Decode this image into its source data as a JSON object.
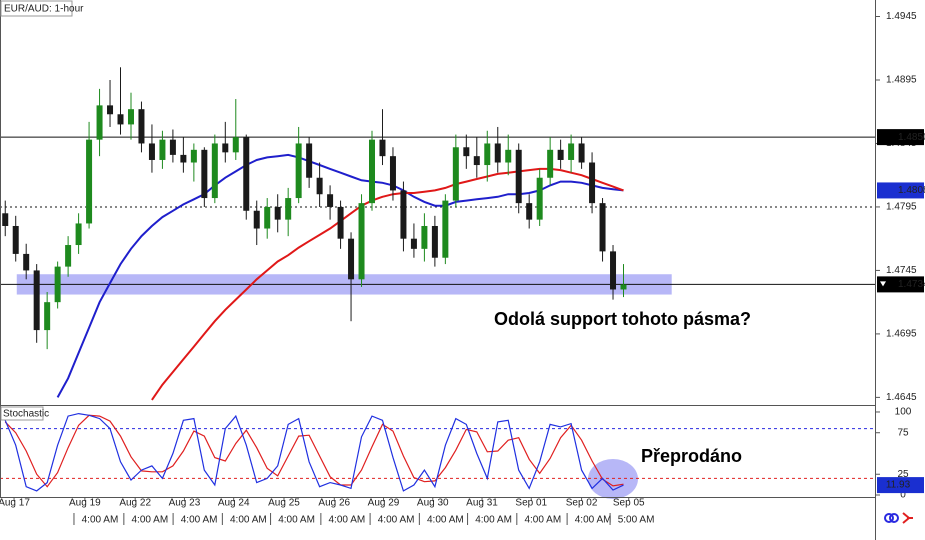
{
  "chart_data": {
    "type": "candlestick",
    "title": "EUR/AUD: 1-hour",
    "annotation": "Odolá support tohoto pásma?",
    "xlim": [
      -0.5,
      83
    ],
    "ylim": [
      1.4639,
      1.4958
    ],
    "yticks": [
      1.4945,
      1.4895,
      1.4845,
      1.4795,
      1.4745,
      1.4695,
      1.4645
    ],
    "up_color": "#1e8a1e",
    "down_color": "#1a1a1a",
    "ohlc": [
      [
        1.479,
        1.48,
        1.4772,
        1.478
      ],
      [
        1.478,
        1.4788,
        1.4752,
        1.4758
      ],
      [
        1.4758,
        1.4766,
        1.4738,
        1.4745
      ],
      [
        1.4745,
        1.475,
        1.4688,
        1.4698
      ],
      [
        1.4698,
        1.4728,
        1.4683,
        1.472
      ],
      [
        1.472,
        1.4752,
        1.4715,
        1.4748
      ],
      [
        1.4748,
        1.4772,
        1.474,
        1.4765
      ],
      [
        1.4765,
        1.479,
        1.4758,
        1.4782
      ],
      [
        1.4782,
        1.4862,
        1.4778,
        1.4848
      ],
      [
        1.4848,
        1.4888,
        1.4835,
        1.4875
      ],
      [
        1.4875,
        1.4895,
        1.4858,
        1.4868
      ],
      [
        1.4868,
        1.4905,
        1.4852,
        1.486
      ],
      [
        1.486,
        1.4885,
        1.4848,
        1.4872
      ],
      [
        1.4872,
        1.4878,
        1.4838,
        1.4845
      ],
      [
        1.4845,
        1.486,
        1.4822,
        1.4832
      ],
      [
        1.4832,
        1.4855,
        1.4825,
        1.4848
      ],
      [
        1.4848,
        1.4856,
        1.483,
        1.4836
      ],
      [
        1.4836,
        1.485,
        1.4822,
        1.483
      ],
      [
        1.483,
        1.4845,
        1.4815,
        1.484
      ],
      [
        1.484,
        1.4842,
        1.4795,
        1.4802
      ],
      [
        1.4802,
        1.4852,
        1.4798,
        1.4845
      ],
      [
        1.4845,
        1.4862,
        1.483,
        1.4838
      ],
      [
        1.4838,
        1.488,
        1.4832,
        1.485
      ],
      [
        1.485,
        1.4852,
        1.4785,
        1.4792
      ],
      [
        1.4792,
        1.48,
        1.4765,
        1.4778
      ],
      [
        1.4778,
        1.4802,
        1.477,
        1.4795
      ],
      [
        1.4795,
        1.4805,
        1.4775,
        1.4785
      ],
      [
        1.4785,
        1.481,
        1.4772,
        1.4802
      ],
      [
        1.4802,
        1.4858,
        1.4798,
        1.4845
      ],
      [
        1.4845,
        1.485,
        1.481,
        1.4818
      ],
      [
        1.4818,
        1.483,
        1.4795,
        1.4805
      ],
      [
        1.4805,
        1.4812,
        1.4785,
        1.4795
      ],
      [
        1.4795,
        1.48,
        1.4762,
        1.477
      ],
      [
        1.477,
        1.4775,
        1.4705,
        1.4738
      ],
      [
        1.4738,
        1.4805,
        1.4732,
        1.4798
      ],
      [
        1.4798,
        1.4855,
        1.4792,
        1.4848
      ],
      [
        1.4848,
        1.4872,
        1.4828,
        1.4835
      ],
      [
        1.4835,
        1.4842,
        1.48,
        1.4808
      ],
      [
        1.4808,
        1.4815,
        1.476,
        1.477
      ],
      [
        1.477,
        1.4782,
        1.4755,
        1.4762
      ],
      [
        1.4762,
        1.479,
        1.4752,
        1.478
      ],
      [
        1.478,
        1.4788,
        1.4748,
        1.4755
      ],
      [
        1.4755,
        1.4805,
        1.475,
        1.48
      ],
      [
        1.48,
        1.4852,
        1.4795,
        1.4842
      ],
      [
        1.4842,
        1.4852,
        1.4825,
        1.4835
      ],
      [
        1.4835,
        1.485,
        1.4818,
        1.4828
      ],
      [
        1.4828,
        1.4855,
        1.4815,
        1.4845
      ],
      [
        1.4845,
        1.4858,
        1.4822,
        1.483
      ],
      [
        1.483,
        1.4852,
        1.482,
        1.484
      ],
      [
        1.484,
        1.4845,
        1.479,
        1.4798
      ],
      [
        1.4798,
        1.4805,
        1.4778,
        1.4785
      ],
      [
        1.4785,
        1.4825,
        1.478,
        1.4818
      ],
      [
        1.4818,
        1.485,
        1.4812,
        1.484
      ],
      [
        1.484,
        1.4848,
        1.4825,
        1.4832
      ],
      [
        1.4832,
        1.4852,
        1.4822,
        1.4845
      ],
      [
        1.4845,
        1.485,
        1.4825,
        1.483
      ],
      [
        1.483,
        1.4838,
        1.479,
        1.4798
      ],
      [
        1.4798,
        1.4802,
        1.4752,
        1.476
      ],
      [
        1.476,
        1.4765,
        1.4722,
        1.473
      ],
      [
        1.473,
        1.475,
        1.4724,
        1.4734
      ]
    ],
    "moving_averages": [
      {
        "color": "#1f1fcc",
        "values": [
          null,
          null,
          null,
          null,
          null,
          1.4645,
          1.466,
          1.468,
          1.47,
          1.472,
          1.4735,
          1.475,
          1.4762,
          1.4772,
          1.478,
          1.4787,
          1.4792,
          1.4797,
          1.4801,
          1.4805,
          1.4812,
          1.4818,
          1.4823,
          1.4828,
          1.4832,
          1.4834,
          1.4835,
          1.4836,
          1.4834,
          1.4831,
          1.4828,
          1.4825,
          1.4822,
          1.4819,
          1.4816,
          1.4815,
          1.4814,
          1.4812,
          1.4808,
          1.4803,
          1.4799,
          1.4796,
          1.4796,
          1.4799,
          1.48,
          1.4801,
          1.4802,
          1.4803,
          1.4805,
          1.4805,
          1.4806,
          1.4808,
          1.4812,
          1.4815,
          1.4815,
          1.4814,
          1.4812,
          1.481,
          1.4809,
          1.4808
        ]
      },
      {
        "color": "#e01818",
        "values": [
          null,
          null,
          null,
          null,
          null,
          null,
          null,
          null,
          null,
          null,
          null,
          null,
          null,
          null,
          1.4643,
          1.4655,
          1.4665,
          1.4675,
          1.4685,
          1.4695,
          1.4705,
          1.4714,
          1.4722,
          1.473,
          1.4738,
          1.4745,
          1.4752,
          1.4757,
          1.4763,
          1.4768,
          1.4773,
          1.4778,
          1.4784,
          1.479,
          1.4796,
          1.48,
          1.4803,
          1.4805,
          1.4806,
          1.4806,
          1.4807,
          1.4808,
          1.481,
          1.4813,
          1.4815,
          1.4817,
          1.4819,
          1.4821,
          1.4822,
          1.4823,
          1.4824,
          1.4825,
          1.4825,
          1.4824,
          1.4822,
          1.482,
          1.4817,
          1.4814,
          1.4811,
          1.4808
        ]
      }
    ],
    "levels": [
      {
        "value": 1.485,
        "style": "solid"
      },
      {
        "value": 1.4795,
        "style": "dotted"
      },
      {
        "value": 1.4734,
        "style": "solid"
      }
    ],
    "zone": {
      "low": 1.4726,
      "high": 1.4742,
      "from": 1.1,
      "to": 63.6,
      "color": "#7c7cf0"
    },
    "price_labels": [
      {
        "value": 1.485,
        "label": "1.4850",
        "color": "#000000"
      },
      {
        "value": 1.4808,
        "label": "1.4808",
        "color": "#1a2fd0"
      },
      {
        "value": 1.4734,
        "label": "1.4734",
        "color": "#000000"
      }
    ],
    "xticks": [
      {
        "value": 0.84,
        "label": "Aug 17"
      },
      {
        "value": 7.6,
        "label": "Aug 19"
      },
      {
        "value": 12.4,
        "label": "Aug 22"
      },
      {
        "value": 17.1,
        "label": "Aug 23"
      },
      {
        "value": 21.8,
        "label": "Aug 24"
      },
      {
        "value": 26.6,
        "label": "Aug 25"
      },
      {
        "value": 31.4,
        "label": "Aug 26"
      },
      {
        "value": 36.1,
        "label": "Aug 29"
      },
      {
        "value": 40.8,
        "label": "Aug 30"
      },
      {
        "value": 45.5,
        "label": "Aug 31"
      },
      {
        "value": 50.2,
        "label": "Sep 01"
      },
      {
        "value": 55,
        "label": "Sep 02"
      },
      {
        "value": 59.5,
        "label": "Sep 05"
      }
    ],
    "time_ticks": [
      {
        "value": 9.04,
        "label": "4:00 AM"
      },
      {
        "value": 13.8,
        "label": "4:00 AM"
      },
      {
        "value": 18.5,
        "label": "4:00 AM"
      },
      {
        "value": 23.2,
        "label": "4:00 AM"
      },
      {
        "value": 27.8,
        "label": "4:00 AM"
      },
      {
        "value": 32.6,
        "label": "4:00 AM"
      },
      {
        "value": 37.3,
        "label": "4:00 AM"
      },
      {
        "value": 42,
        "label": "4:00 AM"
      },
      {
        "value": 46.6,
        "label": "4:00 AM"
      },
      {
        "value": 51.3,
        "label": "4:00 AM"
      },
      {
        "value": 56.1,
        "label": "4:00 AM"
      },
      {
        "value": 60.2,
        "label": "5:00 AM"
      }
    ],
    "indicator": {
      "type": "stochastic",
      "title": "Stochastic",
      "annotation": "Přeprodáno",
      "ylim": [
        -2.4,
        108.4
      ],
      "yticks": [
        100,
        75,
        25,
        0
      ],
      "levels": [
        {
          "value": 80,
          "color": "#2a2ae0"
        },
        {
          "value": 20,
          "color": "#e02020"
        }
      ],
      "k": {
        "color": "#2030e0",
        "values": [
          90,
          60,
          10,
          5,
          15,
          60,
          95,
          98,
          96,
          92,
          80,
          40,
          18,
          30,
          35,
          20,
          50,
          90,
          92,
          30,
          12,
          80,
          95,
          60,
          15,
          20,
          35,
          85,
          92,
          40,
          10,
          15,
          12,
          8,
          70,
          95,
          90,
          45,
          5,
          12,
          30,
          10,
          60,
          92,
          85,
          50,
          20,
          88,
          90,
          30,
          8,
          40,
          85,
          82,
          86,
          30,
          8,
          20,
          6,
          11.93
        ]
      },
      "d": {
        "color": "#e02020",
        "values": [
          88,
          75,
          53,
          25,
          10,
          27,
          57,
          84,
          96,
          95,
          89,
          71,
          46,
          29,
          28,
          28,
          35,
          53,
          77,
          71,
          45,
          41,
          62,
          78,
          57,
          32,
          23,
          47,
          71,
          72,
          47,
          22,
          12,
          12,
          30,
          58,
          85,
          77,
          47,
          21,
          16,
          17,
          33,
          54,
          79,
          76,
          52,
          53,
          66,
          69,
          43,
          26,
          44,
          69,
          84,
          66,
          41,
          19,
          11,
          13
        ]
      },
      "value_label_color": "#1a2fd0"
    }
  }
}
